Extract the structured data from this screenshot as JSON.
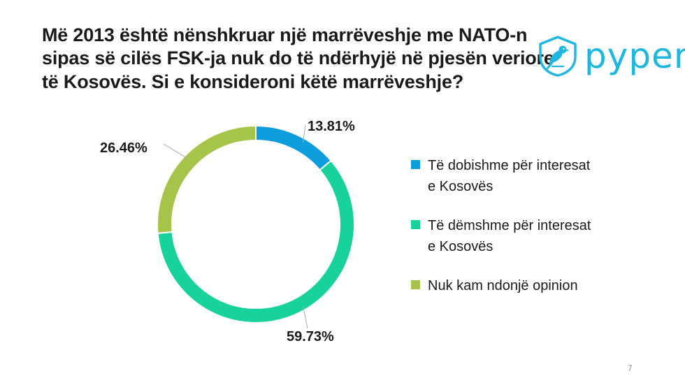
{
  "slide": {
    "title_lines": [
      "Më 2013 është nënshkruar një marrëveshje me NATO-n",
      "sipas së cilës FSK-ja nuk do të ndërhyjë në pjesën veriore",
      "të Kosovës. Si e konsideroni këtë marrëveshje?"
    ],
    "logo_text": "pyper",
    "page_number": "7"
  },
  "chart_data": {
    "type": "pie",
    "variant": "donut",
    "title": "Më 2013 është nënshkruar një marrëveshje me NATO-n sipas së cilës FSK-ja nuk do të ndërhyjë në pjesën veriore të Kosovës. Si e konsideroni këtë marrëveshje?",
    "start_angle_deg": 0,
    "legend_position": "right",
    "slices": [
      {
        "label": "Të dobishme për interesat e Kosovës",
        "value": 13.81,
        "display": "13.81%",
        "color": "#0e9ddc"
      },
      {
        "label": "Të dëmshme për interesat e Kosovës",
        "value": 59.73,
        "display": "59.73%",
        "color": "#17d29a"
      },
      {
        "label": "Nuk kam ndonjë opinion",
        "value": 26.46,
        "display": "26.46%",
        "color": "#a6c44a"
      }
    ]
  },
  "colors": {
    "logo": "#1fb6df",
    "leader_line": "#a6a6a6"
  },
  "icons": {
    "logo_mark": "bird-icon"
  }
}
